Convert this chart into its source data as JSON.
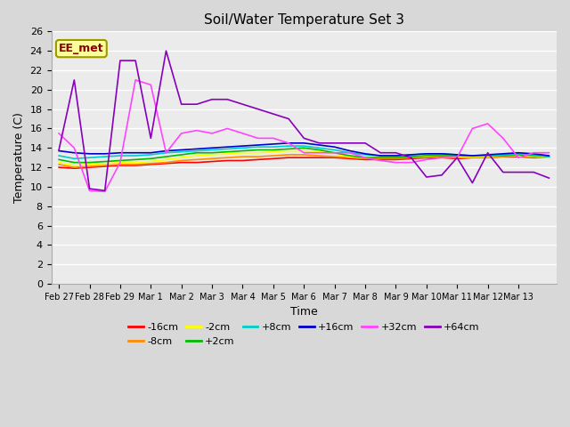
{
  "title": "Soil/Water Temperature Set 3",
  "xlabel": "Time",
  "ylabel": "Temperature (C)",
  "ylim": [
    0,
    26
  ],
  "yticks": [
    0,
    2,
    4,
    6,
    8,
    10,
    12,
    14,
    16,
    18,
    20,
    22,
    24,
    26
  ],
  "fig_bg": "#e0e0e0",
  "plot_bg": "#f0f0f0",
  "watermark": "EE_met",
  "series": {
    "-16cm": {
      "color": "#ff0000",
      "data": [
        12.0,
        11.9,
        12.0,
        12.1,
        12.2,
        12.2,
        12.3,
        12.4,
        12.5,
        12.5,
        12.6,
        12.7,
        12.7,
        12.8,
        12.9,
        13.0,
        13.0,
        13.0,
        13.0,
        12.9,
        12.8,
        12.8,
        12.8,
        12.9,
        13.0,
        13.0,
        12.9,
        13.0,
        13.0,
        13.1,
        13.1,
        13.0,
        13.0
      ]
    },
    "-8cm": {
      "color": "#ff8c00",
      "data": [
        12.3,
        12.0,
        12.1,
        12.2,
        12.3,
        12.3,
        12.4,
        12.5,
        12.7,
        12.8,
        12.9,
        13.0,
        13.1,
        13.1,
        13.2,
        13.3,
        13.3,
        13.2,
        13.1,
        13.0,
        12.9,
        12.9,
        12.9,
        13.0,
        13.1,
        13.1,
        13.0,
        13.0,
        13.0,
        13.1,
        13.2,
        13.1,
        13.0
      ]
    },
    "-2cm": {
      "color": "#ffff00",
      "data": [
        12.5,
        12.2,
        12.3,
        12.4,
        12.5,
        12.5,
        12.6,
        12.8,
        13.0,
        13.2,
        13.3,
        13.4,
        13.5,
        13.5,
        13.6,
        13.7,
        13.7,
        13.6,
        13.4,
        13.1,
        13.0,
        13.0,
        13.0,
        13.1,
        13.1,
        13.2,
        13.1,
        13.1,
        13.1,
        13.2,
        13.2,
        13.1,
        13.0
      ]
    },
    "+2cm": {
      "color": "#00bb00",
      "data": [
        12.8,
        12.5,
        12.5,
        12.6,
        12.7,
        12.8,
        12.9,
        13.1,
        13.3,
        13.5,
        13.5,
        13.6,
        13.7,
        13.8,
        13.8,
        13.9,
        14.0,
        13.8,
        13.5,
        13.2,
        13.0,
        13.0,
        13.0,
        13.1,
        13.2,
        13.2,
        13.2,
        13.2,
        13.2,
        13.2,
        13.3,
        13.2,
        13.1
      ]
    },
    "+8cm": {
      "color": "#00cccc",
      "data": [
        13.2,
        12.9,
        13.0,
        13.1,
        13.2,
        13.2,
        13.3,
        13.5,
        13.6,
        13.7,
        13.8,
        13.9,
        14.0,
        14.1,
        14.1,
        14.2,
        14.2,
        14.0,
        13.8,
        13.5,
        13.3,
        13.2,
        13.2,
        13.3,
        13.4,
        13.4,
        13.3,
        13.2,
        13.2,
        13.3,
        13.4,
        13.3,
        13.1
      ]
    },
    "+16cm": {
      "color": "#0000cc",
      "data": [
        13.7,
        13.5,
        13.4,
        13.4,
        13.5,
        13.5,
        13.5,
        13.7,
        13.8,
        13.9,
        14.0,
        14.1,
        14.2,
        14.3,
        14.4,
        14.5,
        14.5,
        14.3,
        14.1,
        13.7,
        13.4,
        13.2,
        13.2,
        13.3,
        13.4,
        13.4,
        13.3,
        13.2,
        13.3,
        13.4,
        13.5,
        13.4,
        13.2
      ]
    },
    "+32cm": {
      "color": "#ff44ff",
      "data": [
        15.5,
        14.0,
        9.6,
        9.5,
        12.5,
        21.0,
        20.5,
        13.5,
        15.5,
        15.8,
        15.5,
        16.0,
        15.5,
        15.0,
        15.0,
        14.5,
        13.5,
        13.5,
        13.5,
        13.5,
        13.0,
        12.7,
        12.5,
        12.5,
        12.8,
        13.0,
        13.0,
        16.0,
        16.5,
        15.0,
        13.0,
        13.5,
        13.5
      ]
    },
    "+64cm": {
      "color": "#8800bb",
      "data": [
        13.8,
        21.0,
        9.8,
        9.6,
        23.0,
        23.0,
        15.0,
        24.0,
        18.5,
        18.5,
        19.0,
        19.0,
        18.5,
        18.0,
        17.5,
        17.0,
        15.0,
        14.5,
        14.5,
        14.5,
        14.5,
        13.5,
        13.5,
        13.0,
        11.0,
        11.2,
        13.0,
        10.4,
        13.5,
        11.5,
        11.5,
        11.5,
        10.9
      ]
    }
  },
  "x_labels": [
    "Feb 27",
    "Feb 28",
    "Feb 29",
    "Mar 1",
    "Mar 2",
    "Mar 3",
    "Mar 4",
    "Mar 5",
    "Mar 6",
    "Mar 7",
    "Mar 8",
    "Mar 9",
    "Mar 10",
    "Mar 11",
    "Mar 12",
    "Mar 13"
  ],
  "x_label_indices": [
    0,
    2,
    4,
    6,
    8,
    10,
    12,
    14,
    16,
    18,
    20,
    22,
    24,
    26,
    28,
    30
  ],
  "n_points": 33
}
